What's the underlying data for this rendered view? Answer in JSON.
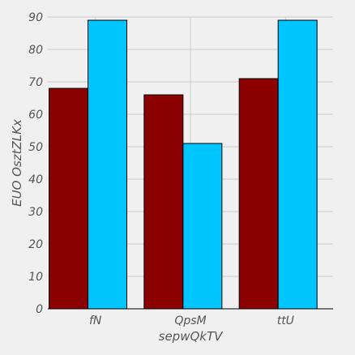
{
  "chart_data": {
    "type": "bar",
    "title": "",
    "xlabel": "sepwQkTV",
    "ylabel": "EUO OsztZLKx",
    "categories": [
      "fN",
      "QpsM",
      "ttU"
    ],
    "series": [
      {
        "values": [
          68,
          66,
          71
        ],
        "color": "#8b0000"
      },
      {
        "values": [
          89,
          51,
          89
        ],
        "color": "#00c5ff"
      }
    ],
    "ylim": [
      0,
      90
    ],
    "yticks": [
      0,
      10,
      20,
      30,
      40,
      50,
      60,
      70,
      80,
      90
    ],
    "grid": true,
    "legend": "none"
  }
}
